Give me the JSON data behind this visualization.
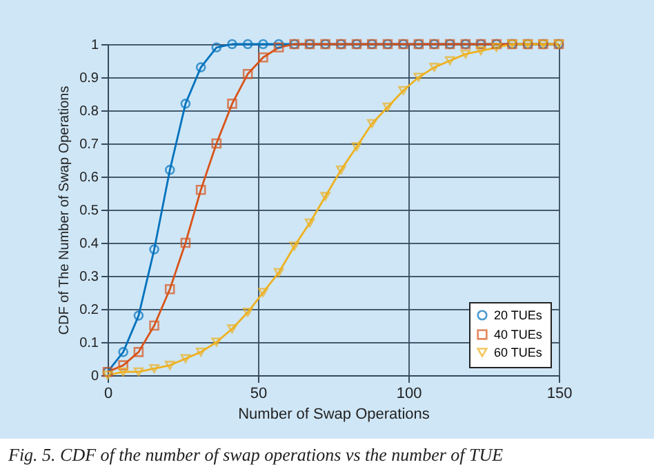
{
  "chart_data": {
    "type": "line",
    "xlabel": "Number of Swap Operations",
    "ylabel": "CDF of The Number of Swap Operations",
    "annotations": [
      "Fig. 5. CDF of the number of swap operations vs the number of TUE"
    ],
    "x": [
      0,
      5.2,
      10.3,
      15.5,
      20.7,
      25.9,
      31,
      36.2,
      41.4,
      46.6,
      51.7,
      56.9,
      62.1,
      67.2,
      72.4,
      77.6,
      82.8,
      87.9,
      93.1,
      98.3,
      103.4,
      108.6,
      113.8,
      119,
      124.1,
      129.3,
      134.5,
      139.7,
      144.8,
      150
    ],
    "series": [
      {
        "name": "20 TUEs",
        "color": "#0072bd",
        "marker": "circle",
        "values": [
          0.01,
          0.07,
          0.18,
          0.38,
          0.62,
          0.82,
          0.93,
          0.99,
          1,
          1,
          1,
          1,
          1,
          1,
          1,
          1,
          1,
          1,
          1,
          1,
          1,
          1,
          1,
          1,
          1,
          1,
          1,
          1,
          1,
          1
        ]
      },
      {
        "name": "40 TUEs",
        "color": "#d95319",
        "marker": "square",
        "values": [
          0.01,
          0.03,
          0.07,
          0.15,
          0.26,
          0.4,
          0.56,
          0.7,
          0.82,
          0.91,
          0.96,
          0.99,
          1,
          1,
          1,
          1,
          1,
          1,
          1,
          1,
          1,
          1,
          1,
          1,
          1,
          1,
          1,
          1,
          1,
          1
        ]
      },
      {
        "name": "60 TUEs",
        "color": "#edb120",
        "marker": "triangle",
        "values": [
          0,
          0.01,
          0.01,
          0.02,
          0.03,
          0.05,
          0.07,
          0.1,
          0.14,
          0.19,
          0.25,
          0.31,
          0.39,
          0.46,
          0.54,
          0.62,
          0.69,
          0.76,
          0.81,
          0.86,
          0.9,
          0.93,
          0.95,
          0.97,
          0.98,
          0.99,
          1,
          1,
          1,
          1
        ]
      }
    ],
    "xlim": [
      0,
      150
    ],
    "xticks": [
      0,
      50,
      100,
      150
    ],
    "ylim": [
      0,
      1
    ],
    "yticks": [
      0,
      0.1,
      0.2,
      0.3,
      0.4,
      0.5,
      0.6,
      0.7,
      0.8,
      0.9,
      1
    ],
    "grid": true,
    "legend": "bottom right",
    "line_style": "solid"
  }
}
